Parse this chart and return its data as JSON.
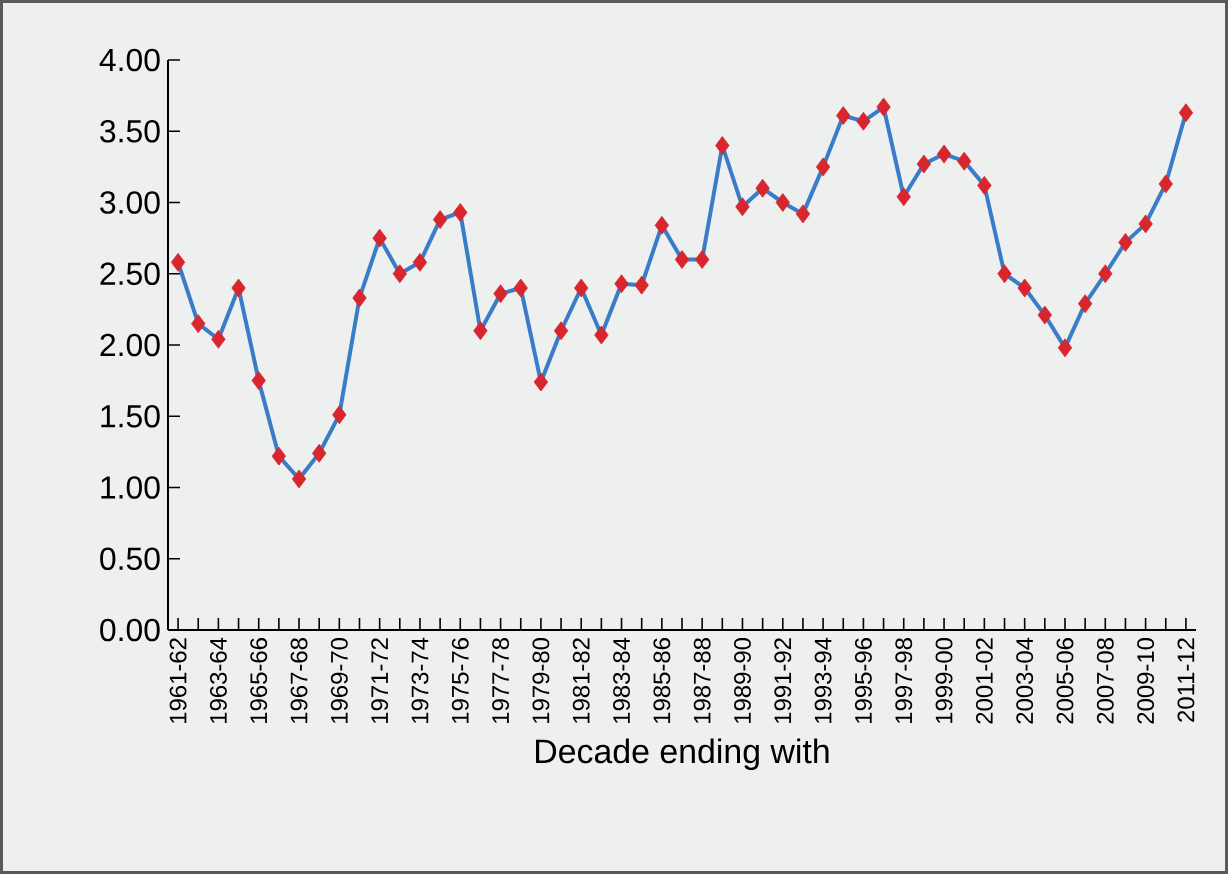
{
  "chart_data": {
    "type": "line",
    "xlabel": "Decade ending with",
    "categories": [
      "1961-62",
      null,
      "1963-64",
      null,
      "1965-66",
      null,
      "1967-68",
      null,
      "1969-70",
      null,
      "1971-72",
      null,
      "1973-74",
      null,
      "1975-76",
      null,
      "1977-78",
      null,
      "1979-80",
      null,
      "1981-82",
      null,
      "1983-84",
      null,
      "1985-86",
      null,
      "1987-88",
      null,
      "1989-90",
      null,
      "1991-92",
      null,
      "1993-94",
      null,
      "1995-96",
      null,
      "1997-98",
      null,
      "1999-00",
      null,
      "2001-02",
      null,
      "2003-04",
      null,
      "2005-06",
      null,
      "2007-08",
      null,
      "2009-10",
      null,
      "2011-12"
    ],
    "series": [
      {
        "color": "#3a7cc8",
        "colors": [
          "#d7262e",
          "#d7262e",
          "#d7262e",
          "#d7262e",
          "#d7262e",
          "#d7262e",
          "#d7262e",
          "#d7262e",
          "#d7262e",
          "#d7262e",
          "#d7262e",
          "#d7262e",
          "#d7262e",
          "#d7262e",
          "#d7262e",
          "#d7262e",
          "#d7262e",
          "#d7262e",
          "#d7262e",
          "#d7262e",
          "#d7262e",
          "#d7262e",
          "#d7262e",
          "#d7262e",
          "#d7262e",
          "#d7262e",
          "#d7262e",
          "#d7262e",
          "#d7262e",
          "#d7262e",
          "#d7262e",
          "#d7262e",
          "#d7262e",
          "#d7262e",
          "#d7262e",
          "#d7262e",
          "#d7262e",
          "#d7262e",
          "#d7262e",
          "#d7262e",
          "#d7262e",
          "#d7262e",
          "#d7262e",
          "#d7262e",
          "#d7262e",
          "#d7262e",
          "#d7262e",
          "#d7262e",
          "#d7262e",
          "#d7262e",
          "#d7262e"
        ],
        "values": [
          2.58,
          2.15,
          2.04,
          2.4,
          1.75,
          1.22,
          1.06,
          1.24,
          1.51,
          2.33,
          2.75,
          2.5,
          2.58,
          2.88,
          2.93,
          2.1,
          2.36,
          2.4,
          1.74,
          2.1,
          2.4,
          2.07,
          2.43,
          2.42,
          2.84,
          2.6,
          2.6,
          3.4,
          2.97,
          3.1,
          3.0,
          2.92,
          3.25,
          3.61,
          3.57,
          3.67,
          3.04,
          3.27,
          3.34,
          3.29,
          3.12,
          2.5,
          2.4,
          2.21,
          1.98,
          2.29,
          2.5,
          2.72,
          2.85,
          3.13,
          3.63
        ]
      }
    ],
    "ylim": [
      0,
      4
    ],
    "yticks": [
      {
        "value": 0,
        "label": "0.00"
      },
      {
        "value": 0.5,
        "label": "0.50"
      },
      {
        "value": 1,
        "label": "1.00"
      },
      {
        "value": 1.5,
        "label": "1.50"
      },
      {
        "value": 2,
        "label": "2.00"
      },
      {
        "value": 2.5,
        "label": "2.50"
      },
      {
        "value": 3,
        "label": "3.00"
      },
      {
        "value": 3.5,
        "label": "3.50"
      },
      {
        "value": 4,
        "label": "4.00"
      }
    ],
    "marker": "diamond",
    "line_style": "solid",
    "grid": false
  }
}
